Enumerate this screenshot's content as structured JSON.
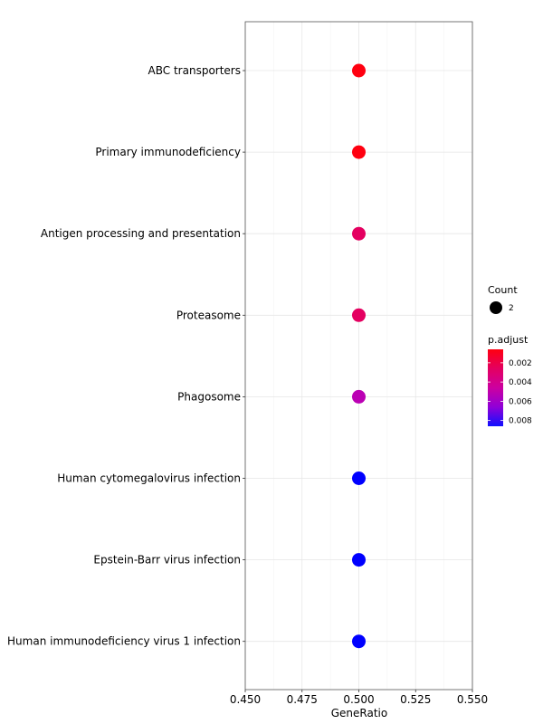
{
  "chart_data": {
    "type": "scatter",
    "title": "",
    "xlabel": "GeneRatio",
    "ylabel": "",
    "xlim": [
      0.45,
      0.55
    ],
    "x_ticks": [
      "0.450",
      "0.475",
      "0.500",
      "0.525",
      "0.550"
    ],
    "x_tick_values": [
      0.45,
      0.475,
      0.5,
      0.525,
      0.55
    ],
    "grid": true,
    "legend_position": "right",
    "categories": [
      "ABC transporters",
      "Primary immunodeficiency",
      "Antigen processing and presentation",
      "Proteasome",
      "Phagosome",
      "Human cytomegalovirus infection",
      "Epstein-Barr virus infection",
      "Human immunodeficiency virus 1 infection"
    ],
    "points": [
      {
        "category": "ABC transporters",
        "gene_ratio": 0.5,
        "count": 2,
        "p_adjust": 0.0006,
        "color": "#ff0010"
      },
      {
        "category": "Primary immunodeficiency",
        "gene_ratio": 0.5,
        "count": 2,
        "p_adjust": 0.0006,
        "color": "#ff0010"
      },
      {
        "category": "Antigen processing and presentation",
        "gene_ratio": 0.5,
        "count": 2,
        "p_adjust": 0.0025,
        "color": "#e40060"
      },
      {
        "category": "Proteasome",
        "gene_ratio": 0.5,
        "count": 2,
        "p_adjust": 0.0025,
        "color": "#e40060"
      },
      {
        "category": "Phagosome",
        "gene_ratio": 0.5,
        "count": 2,
        "p_adjust": 0.0051,
        "color": "#bb00b4"
      },
      {
        "category": "Human cytomegalovirus infection",
        "gene_ratio": 0.5,
        "count": 2,
        "p_adjust": 0.0086,
        "color": "#0000ff"
      },
      {
        "category": "Epstein-Barr virus infection",
        "gene_ratio": 0.5,
        "count": 2,
        "p_adjust": 0.0086,
        "color": "#0000ff"
      },
      {
        "category": "Human immunodeficiency virus 1 infection",
        "gene_ratio": 0.5,
        "count": 2,
        "p_adjust": 0.0086,
        "color": "#0000ff"
      }
    ],
    "legend": {
      "size_title": "Count",
      "size_items": [
        {
          "label": "2"
        }
      ],
      "color_title": "p.adjust",
      "color_ticks": [
        {
          "label": "0.002",
          "value": 0.002
        },
        {
          "label": "0.004",
          "value": 0.004
        },
        {
          "label": "0.006",
          "value": 0.006
        },
        {
          "label": "0.008",
          "value": 0.008
        }
      ],
      "color_range": [
        0.0006,
        0.0086
      ],
      "color_low": "#ff0010",
      "color_high": "#0000ff"
    }
  }
}
